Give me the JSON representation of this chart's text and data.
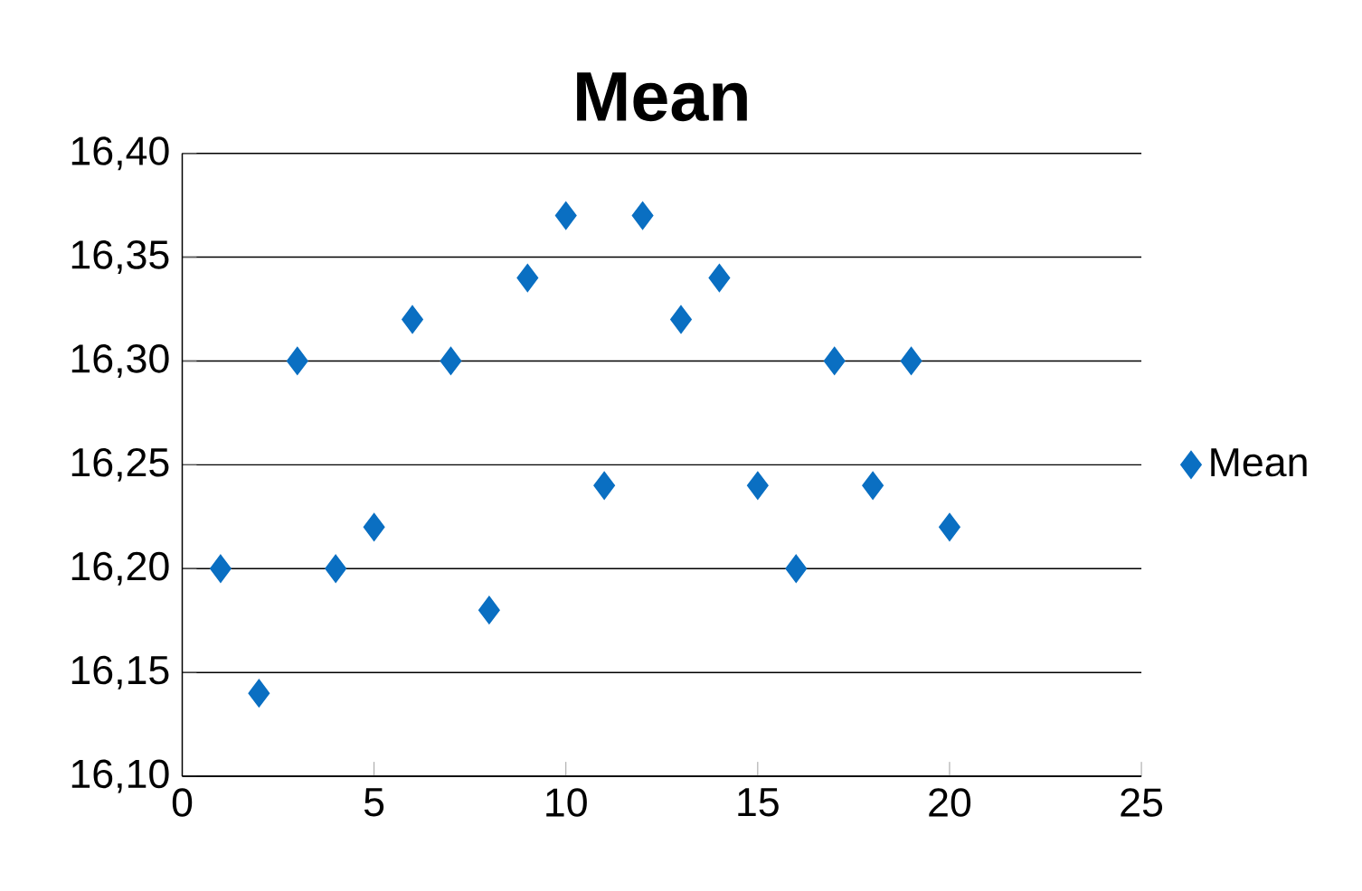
{
  "chart_data": {
    "type": "scatter",
    "title": "Mean",
    "x": [
      1,
      2,
      3,
      4,
      5,
      6,
      7,
      8,
      9,
      10,
      11,
      12,
      13,
      14,
      15,
      16,
      17,
      18,
      19,
      20
    ],
    "series": [
      {
        "name": "Mean",
        "color": "#0a6fc2",
        "values": [
          16.2,
          16.14,
          16.3,
          16.2,
          16.22,
          16.32,
          16.3,
          16.18,
          16.34,
          16.37,
          16.24,
          16.37,
          16.32,
          16.34,
          16.24,
          16.2,
          16.3,
          16.24,
          16.3,
          16.22
        ]
      }
    ],
    "xlim": [
      0,
      25
    ],
    "xticks": [
      0,
      5,
      10,
      15,
      20,
      25
    ],
    "ylim": [
      16.1,
      16.4
    ],
    "yticks": [
      {
        "value": 16.1,
        "label": "16,10"
      },
      {
        "value": 16.15,
        "label": "16,15"
      },
      {
        "value": 16.2,
        "label": "16,20"
      },
      {
        "value": 16.25,
        "label": "16,25"
      },
      {
        "value": 16.3,
        "label": "16,30"
      },
      {
        "value": 16.35,
        "label": "16,35"
      },
      {
        "value": 16.4,
        "label": "16,40"
      }
    ],
    "grid": "y",
    "legend": "right",
    "marker": "diamond"
  }
}
